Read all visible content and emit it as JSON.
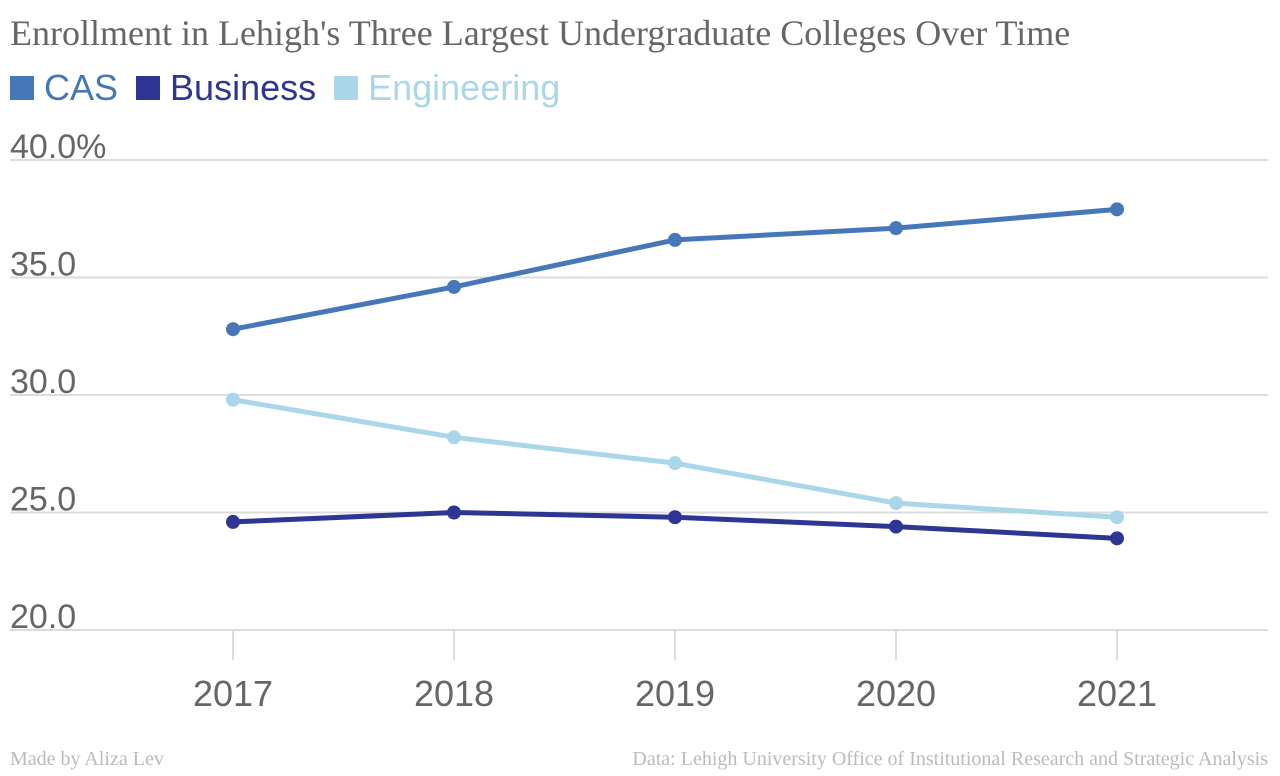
{
  "chart_data": {
    "type": "line",
    "title": "Enrollment in Lehigh's Three Largest Undergraduate Colleges Over Time",
    "x": [
      "2017",
      "2018",
      "2019",
      "2020",
      "2021"
    ],
    "series": [
      {
        "name": "CAS",
        "color": "#4677b8",
        "values": [
          32.8,
          34.6,
          36.6,
          37.1,
          37.9
        ]
      },
      {
        "name": "Business",
        "color": "#2e3592",
        "values": [
          24.6,
          25.0,
          24.8,
          24.4,
          23.9
        ]
      },
      {
        "name": "Engineering",
        "color": "#a9d6e8",
        "values": [
          29.8,
          28.2,
          27.1,
          25.4,
          24.8
        ]
      }
    ],
    "yticks": [
      "20.0",
      "25.0",
      "30.0",
      "35.0",
      "40.0%"
    ],
    "ylim": [
      20,
      40
    ],
    "grid": true,
    "legend_position": "top-left"
  },
  "footer": {
    "credit": "Made by Aliza Lev",
    "source": "Data: Lehigh University Office of Institutional Research and Strategic Analysis"
  }
}
